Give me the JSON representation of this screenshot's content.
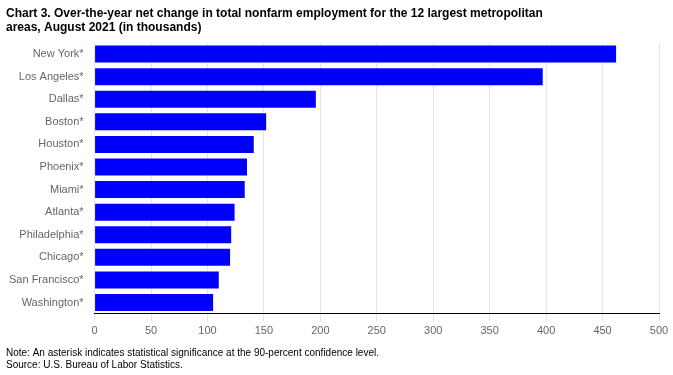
{
  "chart_data": {
    "type": "bar",
    "orientation": "horizontal",
    "title": [
      "Chart 3. Over-the-year net change in total nonfarm employment for the 12 largest metropolitan",
      "areas, August 2021 (in thousands)"
    ],
    "annotations": [
      "Note: An asterisk indicates statistical significance at the 90-percent confidence level.",
      "Source: U.S. Bureau of Labor Statistics."
    ],
    "categories": [
      "Washington*",
      "San Francisco*",
      "Chicago*",
      "Philadelphia*",
      "Atlanta*",
      "Miami*",
      "Phoenix*",
      "Houston*",
      "Boston*",
      "Dallas*",
      "Los Angeles*",
      "New York*"
    ],
    "values": [
      105,
      110,
      120,
      121,
      124,
      133,
      135,
      141,
      152,
      196,
      397,
      462
    ],
    "color": "#0000FF",
    "xlim": [
      0,
      500
    ],
    "xticks": [
      0,
      50,
      100,
      150,
      200,
      250,
      300,
      350,
      400,
      450,
      500
    ],
    "grid": true
  }
}
